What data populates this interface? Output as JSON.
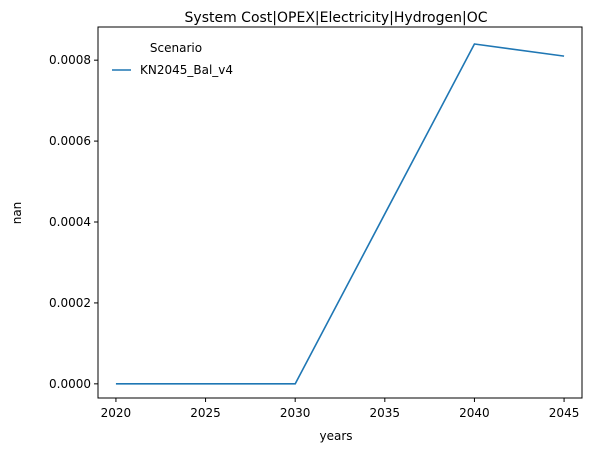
{
  "chart_data": {
    "type": "line",
    "title": "System Cost|OPEX|Electricity|Hydrogen|OC",
    "xlabel": "years",
    "ylabel": "nan",
    "x": [
      2020,
      2030,
      2040,
      2045
    ],
    "series": [
      {
        "name": "KN2045_Bal_v4",
        "values": [
          0.0,
          0.0,
          0.00084,
          0.00081
        ],
        "color": "#1f77b4"
      }
    ],
    "xlim": [
      2019,
      2046
    ],
    "ylim": [
      -3.5e-05,
      0.000882
    ],
    "xticks": [
      2020,
      2025,
      2030,
      2035,
      2040,
      2045
    ],
    "xtick_labels": [
      "2020",
      "2025",
      "2030",
      "2035",
      "2040",
      "2045"
    ],
    "yticks": [
      0,
      0.0002,
      0.0004,
      0.0006,
      0.0008
    ],
    "ytick_labels": [
      "0.0000",
      "0.0002",
      "0.0004",
      "0.0006",
      "0.0008"
    ],
    "grid": false,
    "legend": {
      "title": "Scenario",
      "placement": "top-left"
    }
  }
}
